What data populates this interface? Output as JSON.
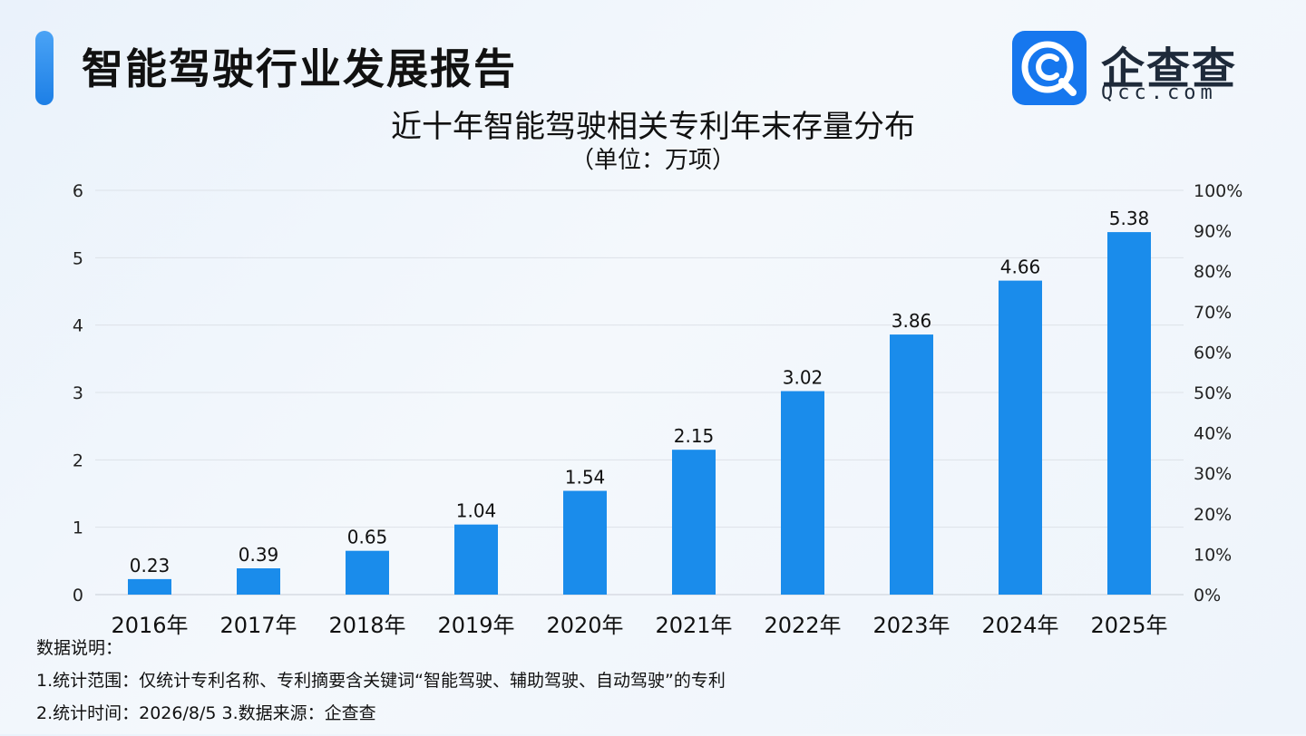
{
  "header": {
    "title": "智能驾驶行业发展报告",
    "logo_name": "企查查",
    "logo_domain": "Qcc.com"
  },
  "chart_data": {
    "type": "bar",
    "title": "近十年智能驾驶相关专利年末存量分布",
    "subtitle": "（单位：万项）",
    "categories": [
      "2016年",
      "2017年",
      "2018年",
      "2019年",
      "2020年",
      "2021年",
      "2022年",
      "2023年",
      "2024年",
      "2025年"
    ],
    "values": [
      0.23,
      0.39,
      0.65,
      1.04,
      1.54,
      2.15,
      3.02,
      3.86,
      4.66,
      5.38
    ],
    "value_labels": [
      "0.23",
      "0.39",
      "0.65",
      "1.04",
      "1.54",
      "2.15",
      "3.02",
      "3.86",
      "4.66",
      "5.38"
    ],
    "ylim": [
      0,
      6
    ],
    "y_ticks": [
      "0",
      "1",
      "2",
      "3",
      "4",
      "5",
      "6"
    ],
    "y2_ticks": [
      "0%",
      "10%",
      "20%",
      "30%",
      "40%",
      "50%",
      "60%",
      "70%",
      "80%",
      "90%",
      "100%"
    ],
    "grid": true,
    "bar_color": "#1a8ceb"
  },
  "notes": {
    "heading": "数据说明：",
    "line1": "1.统计范围：仅统计专利名称、专利摘要含关键词“智能驾驶、辅助驾驶、自动驾驶”的专利",
    "line2": "2.统计时间：2026/8/5  3.数据来源：企查查"
  }
}
